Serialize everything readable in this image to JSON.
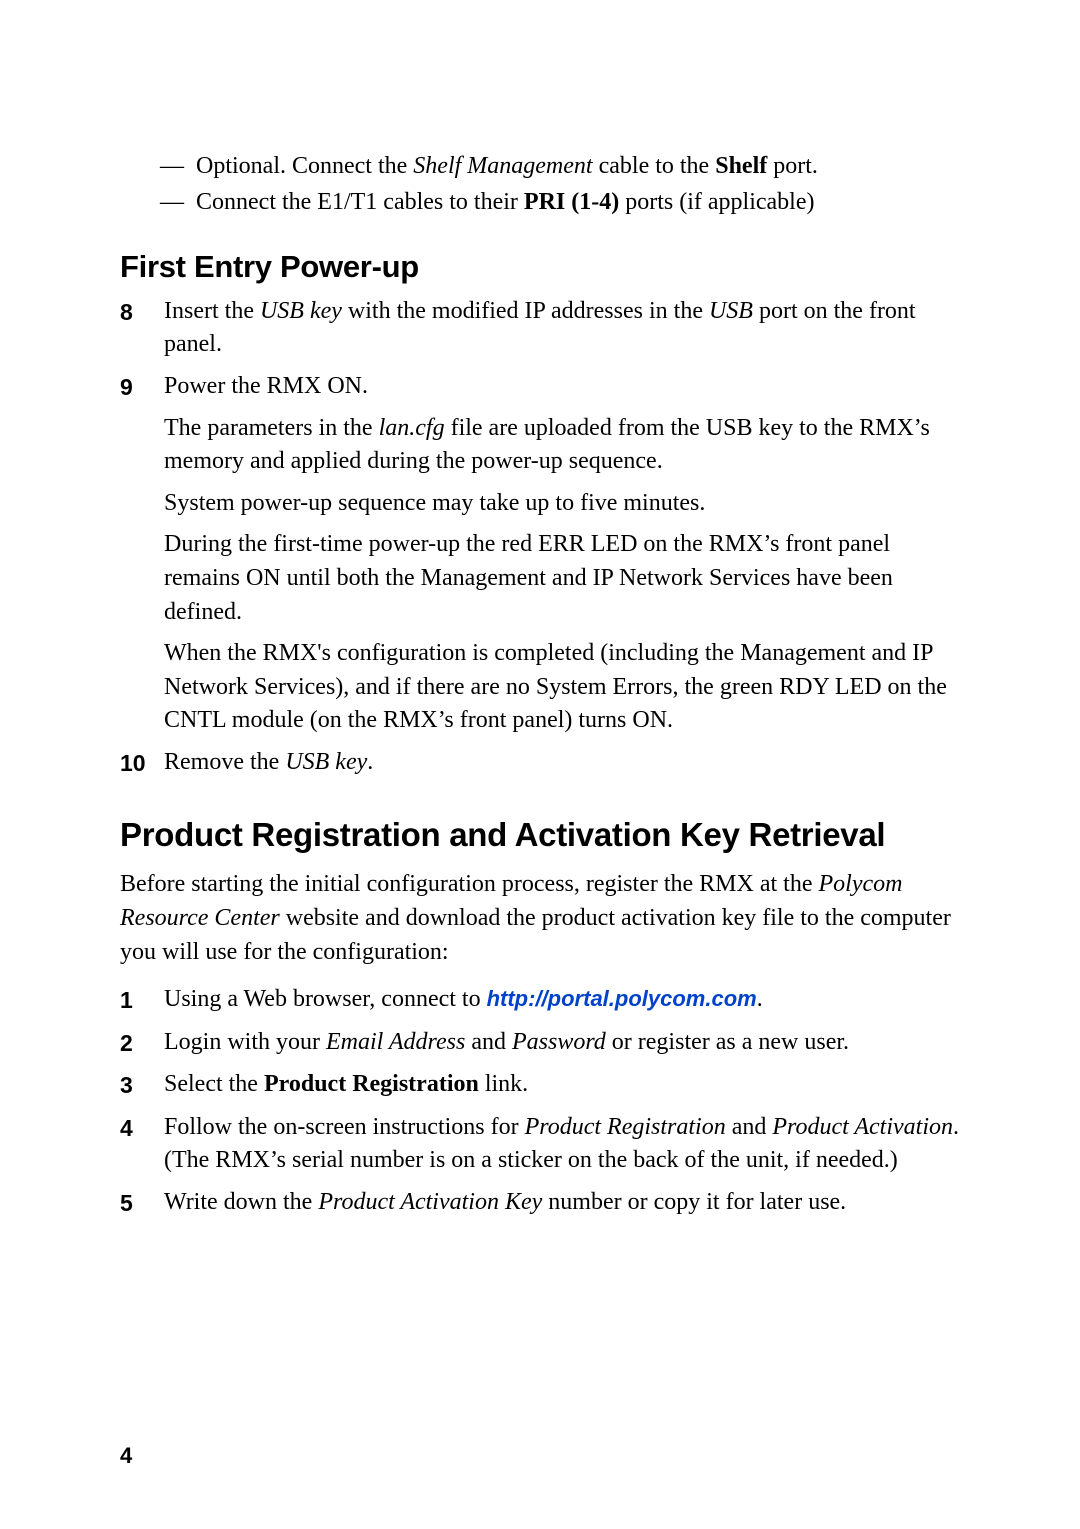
{
  "page_number": "4",
  "link": {
    "text": "http://portal.polycom.com",
    "href": "http://portal.polycom.com",
    "color": "#0042c8"
  },
  "top_dashes": [
    {
      "pre": "Optional. Connect the ",
      "em": "Shelf Management",
      "mid": " cable to the ",
      "bold": "Shelf",
      "post": " port."
    },
    {
      "pre": "Connect the E1/T1 cables to their ",
      "bold": "PRI (1-4)",
      "post": " ports (if applicable)"
    }
  ],
  "section1_title": "First Entry Power-up",
  "steps_a": [
    {
      "num": "8",
      "paras": [
        [
          {
            "t": "Insert the "
          },
          {
            "t": "USB key",
            "style": "italic"
          },
          {
            "t": " with the modified IP addresses in the "
          },
          {
            "t": "USB",
            "style": "italic"
          },
          {
            "t": " port on the front panel."
          }
        ]
      ]
    },
    {
      "num": "9",
      "paras": [
        [
          {
            "t": "Power the RMX ON."
          }
        ],
        [
          {
            "t": "The parameters in the "
          },
          {
            "t": "lan.cfg",
            "style": "italic"
          },
          {
            "t": " file are uploaded from the USB key to the RMX’s memory and applied during the power-up sequence."
          }
        ],
        [
          {
            "t": "System power-up sequence may take up to five minutes."
          }
        ],
        [
          {
            "t": "During the first-time power-up the red ERR LED on the RMX’s front panel remains ON until both the Management and IP Network Services have been defined."
          }
        ],
        [
          {
            "t": "When the RMX's configuration is completed (including the Management and IP Network Services), and if there are no System Errors, the green RDY LED on the CNTL module (on the RMX’s front panel) turns ON."
          }
        ]
      ]
    },
    {
      "num": "10",
      "paras": [
        [
          {
            "t": "Remove the "
          },
          {
            "t": "USB key",
            "style": "italic"
          },
          {
            "t": "."
          }
        ]
      ]
    }
  ],
  "section2_title": "Product Registration and Activation Key Retrieval",
  "section2_intro": [
    {
      "t": "Before starting the initial configuration process, register the RMX at the "
    },
    {
      "t": "Polycom Resource Center",
      "style": "italic"
    },
    {
      "t": " website and download the product activation key file to the computer you will use for the configuration:"
    }
  ],
  "steps_b": [
    {
      "num": "1",
      "paras": [
        [
          {
            "t": "Using a Web browser, connect to "
          },
          {
            "t": "LINK"
          },
          {
            "t": "."
          }
        ]
      ]
    },
    {
      "num": "2",
      "paras": [
        [
          {
            "t": "Login with your "
          },
          {
            "t": "Email Address",
            "style": "italic"
          },
          {
            "t": " and "
          },
          {
            "t": "Password",
            "style": "italic"
          },
          {
            "t": " or register as a new user."
          }
        ]
      ]
    },
    {
      "num": "3",
      "paras": [
        [
          {
            "t": "Select the "
          },
          {
            "t": "Product Registration",
            "style": "bold"
          },
          {
            "t": " link."
          }
        ]
      ]
    },
    {
      "num": "4",
      "paras": [
        [
          {
            "t": "Follow the on-screen instructions for "
          },
          {
            "t": "Product Registration",
            "style": "italic"
          },
          {
            "t": " and "
          },
          {
            "t": "Product Activation",
            "style": "italic"
          },
          {
            "t": ". (The RMX’s serial number is on a sticker on the back of the unit, if needed.)"
          }
        ]
      ]
    },
    {
      "num": "5",
      "paras": [
        [
          {
            "t": "Write down the "
          },
          {
            "t": "Product Activation Key",
            "style": "italic"
          },
          {
            "t": " number or copy it for later use."
          }
        ]
      ]
    }
  ]
}
